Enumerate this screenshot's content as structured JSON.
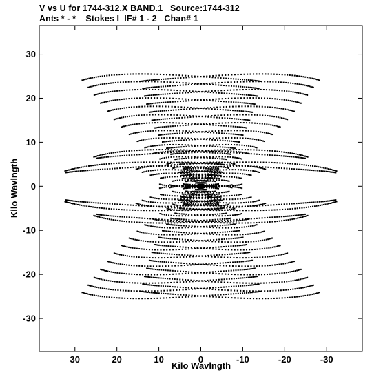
{
  "header": {
    "line1": "V vs U for 1744-312.X BAND.1   Source:1744-312",
    "line2": "Ants * - *    Stokes I  IF# 1 - 2   Chan# 1"
  },
  "chart_data": {
    "type": "scatter",
    "title": "V vs U for 1744-312.X BAND.1   Source:1744-312",
    "subtitle": "Ants * - *    Stokes I  IF# 1 - 2   Chan# 1",
    "xlabel": "Kilo Wavlngth",
    "ylabel": "Kilo Wavlngth",
    "xlim": [
      38.5,
      -38.5
    ],
    "ylim": [
      -37.5,
      36.5
    ],
    "x_reversed": true,
    "xticks": [
      30,
      20,
      10,
      0,
      -10,
      -20,
      -30
    ],
    "xtick_labels": [
      "30",
      "20",
      "10",
      "0",
      "-10",
      "-20",
      "-30"
    ],
    "yticks": [
      30,
      20,
      10,
      0,
      -10,
      -20,
      -30
    ],
    "ytick_labels": [
      "30",
      "20",
      "10",
      "0",
      "-10",
      "-20",
      "-30"
    ],
    "grid": false,
    "marker_color": "#000000",
    "series": [
      {
        "tracks": [
          {
            "u0": 0.1,
            "v0": 0.35,
            "du": 0.5,
            "dv": 0.04,
            "sym": true
          },
          {
            "u0": 0.2,
            "v0": 0.7,
            "du": 1.1,
            "dv": 0.1,
            "sym": true
          },
          {
            "u0": 0.3,
            "v0": 1.1,
            "du": 1.8,
            "dv": 0.15,
            "sym": true
          },
          {
            "u0": 0.5,
            "v0": 1.6,
            "du": 2.6,
            "dv": 0.22,
            "sym": true
          },
          {
            "u0": 0.7,
            "v0": 2.3,
            "du": 3.5,
            "dv": 0.3,
            "sym": true
          },
          {
            "u0": 0.9,
            "v0": 3.0,
            "du": 4.6,
            "dv": 0.4,
            "sym": true
          },
          {
            "u0": 1.2,
            "v0": 3.9,
            "du": 5.8,
            "dv": 0.5,
            "sym": true
          },
          {
            "u0": 1.5,
            "v0": 4.8,
            "du": 7.0,
            "dv": 0.6,
            "sym": true
          },
          {
            "u0": 1.8,
            "v0": 5.9,
            "du": 8.5,
            "dv": 0.75,
            "sym": true
          },
          {
            "u0": 2.2,
            "v0": 7.0,
            "du": 10.0,
            "dv": 0.9,
            "sym": true
          },
          {
            "u0": 2.6,
            "v0": 8.3,
            "du": 11.5,
            "dv": 1.05,
            "sym": true
          },
          {
            "u0": 3.0,
            "v0": 9.7,
            "du": 13.0,
            "dv": 1.2,
            "sym": true
          },
          {
            "u0": 3.5,
            "v0": 11.2,
            "du": 14.5,
            "dv": 1.35,
            "sym": true
          },
          {
            "u0": 4.0,
            "v0": 12.8,
            "du": 16.0,
            "dv": 1.5,
            "sym": true
          },
          {
            "u0": 4.5,
            "v0": 14.5,
            "du": 17.3,
            "dv": 1.6,
            "sym": true
          },
          {
            "u0": 5.0,
            "v0": 16.3,
            "du": 18.5,
            "dv": 1.7,
            "sym": true
          },
          {
            "u0": 5.5,
            "v0": 18.1,
            "du": 19.7,
            "dv": 1.8,
            "sym": true
          },
          {
            "u0": 6.0,
            "v0": 19.9,
            "du": 20.8,
            "dv": 1.9,
            "sym": true
          },
          {
            "u0": 6.5,
            "v0": 21.6,
            "du": 21.8,
            "dv": 2.0,
            "sym": true
          },
          {
            "u0": 7.0,
            "v0": 23.2,
            "du": 22.8,
            "dv": 2.1,
            "sym": true
          },
          {
            "u0": 1.6,
            "v0": 1.0,
            "du": 5.5,
            "dv": 0.4,
            "sym": true
          },
          {
            "u0": 2.6,
            "v0": 1.6,
            "du": 7.5,
            "dv": 0.55,
            "sym": true
          },
          {
            "u0": 3.6,
            "v0": 2.2,
            "du": 9.0,
            "dv": 0.7,
            "sym": true
          },
          {
            "u0": 4.6,
            "v0": 2.8,
            "du": 10.0,
            "dv": 0.9,
            "sym": true
          },
          {
            "u0": 5.6,
            "v0": 3.4,
            "du": 10.5,
            "dv": 1.1,
            "sym": true
          },
          {
            "u0": 0.8,
            "v0": -0.3,
            "du": 4.0,
            "dv": 0.3,
            "sym": true
          },
          {
            "u0": 1.8,
            "v0": -0.5,
            "du": 6.0,
            "dv": 0.45,
            "sym": true
          },
          {
            "u0": 2.8,
            "v0": -0.7,
            "du": 7.5,
            "dv": 0.6,
            "sym": true
          },
          {
            "u0": 0.3,
            "v0": 5.6,
            "du": 27.0,
            "dv": 2.5,
            "sym": false
          },
          {
            "u0": 0.1,
            "v0": 2.2,
            "du": 34.6,
            "dv": 3.0,
            "sym": false
          }
        ]
      }
    ]
  }
}
